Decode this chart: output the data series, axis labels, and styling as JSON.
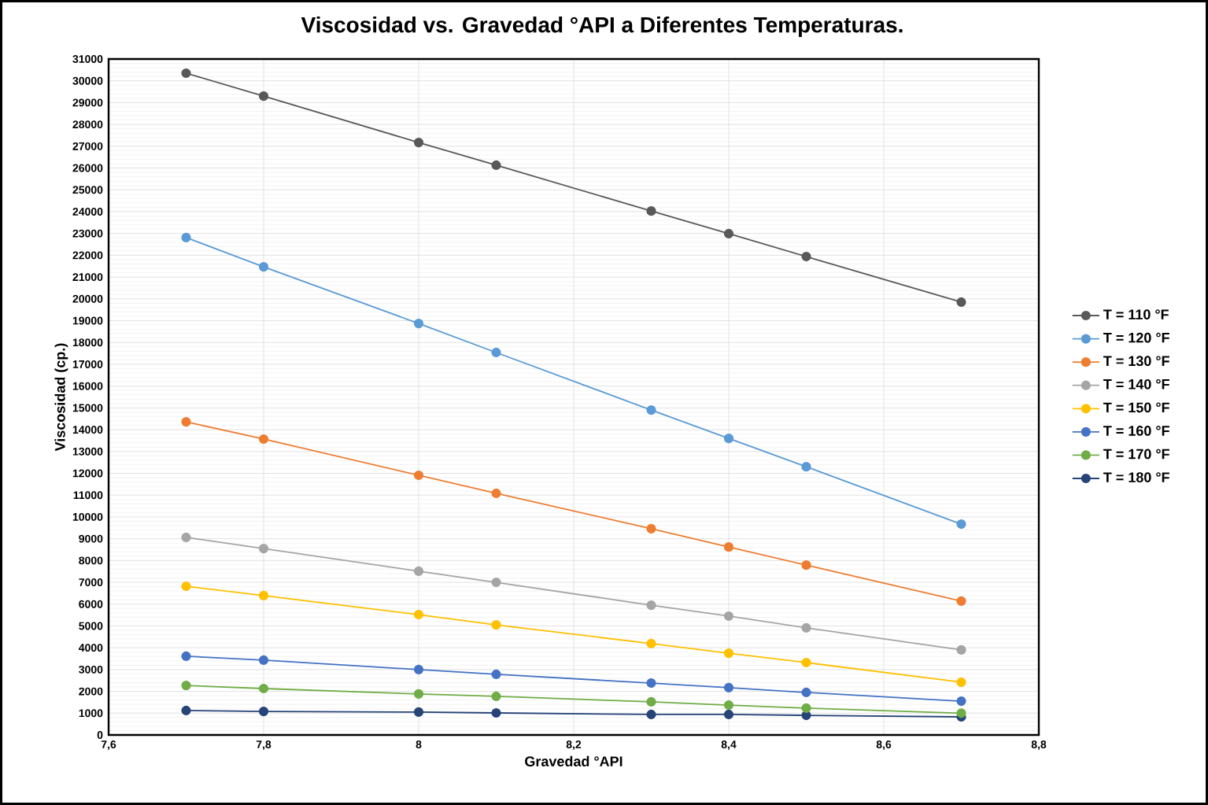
{
  "chart_data": {
    "type": "line",
    "title": "Viscosidad vs. Gravedad °API a Diferentes Temperaturas.",
    "xlabel": "Gravedad °API",
    "ylabel": "Viscosidad (cp.)",
    "x": [
      7.7,
      7.8,
      8.0,
      8.1,
      8.3,
      8.4,
      8.5,
      8.7
    ],
    "series": [
      {
        "name": "T = 110 °F",
        "color": "#595959",
        "values": [
          30350,
          29300,
          27170,
          26130,
          24030,
          22990,
          21940,
          19850
        ]
      },
      {
        "name": "T = 120 °F",
        "color": "#5b9bd5",
        "values": [
          22810,
          21470,
          18870,
          17540,
          14900,
          13600,
          12300,
          9670
        ]
      },
      {
        "name": "T = 130 °F",
        "color": "#ed7d31",
        "values": [
          14360,
          13570,
          11910,
          11080,
          9460,
          8620,
          7790,
          6140
        ]
      },
      {
        "name": "T = 140 °F",
        "color": "#a5a5a5",
        "values": [
          9060,
          8550,
          7510,
          7000,
          5950,
          5450,
          4910,
          3900
        ]
      },
      {
        "name": "T = 150 °F",
        "color": "#ffc000",
        "values": [
          6820,
          6390,
          5520,
          5050,
          4190,
          3750,
          3320,
          2420
        ]
      },
      {
        "name": "T = 160 °F",
        "color": "#4472c4",
        "values": [
          3610,
          3430,
          3000,
          2780,
          2380,
          2170,
          1950,
          1550
        ]
      },
      {
        "name": "T = 170 °F",
        "color": "#70ad47",
        "values": [
          2270,
          2130,
          1880,
          1770,
          1520,
          1370,
          1230,
          1000
        ]
      },
      {
        "name": "T = 180 °F",
        "color": "#264478",
        "values": [
          1120,
          1080,
          1050,
          1010,
          940,
          940,
          900,
          830
        ]
      }
    ],
    "xlim": [
      7.6,
      8.8
    ],
    "xticks": [
      {
        "value": 7.6,
        "label": "7,6"
      },
      {
        "value": 7.8,
        "label": "7,8"
      },
      8,
      {
        "value": 8.2,
        "label": "8,2"
      },
      {
        "value": 8.4,
        "label": "8,4"
      },
      {
        "value": 8.6,
        "label": "8,6"
      },
      {
        "value": 8.8,
        "label": "8,8"
      }
    ],
    "ylim": [
      0,
      31000
    ],
    "yticks": [
      0,
      1000,
      2000,
      3000,
      4000,
      5000,
      6000,
      7000,
      8000,
      9000,
      10000,
      11000,
      12000,
      13000,
      14000,
      15000,
      16000,
      17000,
      18000,
      19000,
      20000,
      21000,
      22000,
      23000,
      24000,
      25000,
      26000,
      27000,
      28000,
      29000,
      30000,
      31000
    ],
    "grid": true,
    "legend": "right",
    "marker": "circle",
    "line_style": "solid"
  }
}
